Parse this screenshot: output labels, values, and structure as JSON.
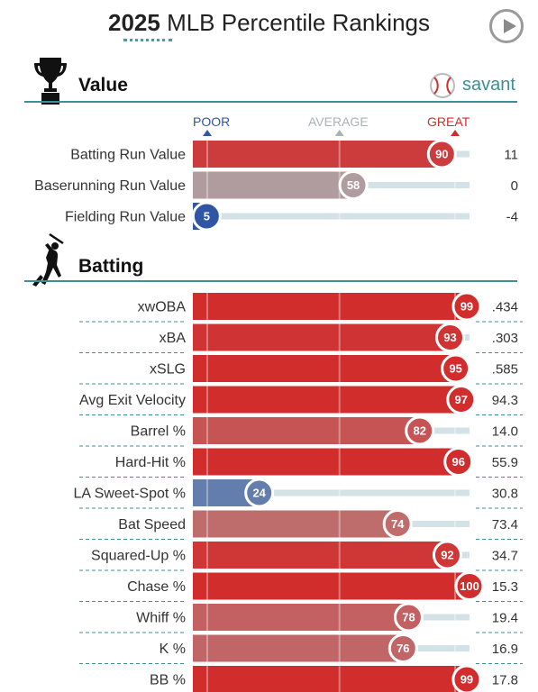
{
  "header": {
    "title_year": "2025",
    "title_rest": " MLB Percentile Rankings"
  },
  "brand": {
    "label": "savant"
  },
  "scale": {
    "poor": "POOR",
    "average": "AVERAGE",
    "great": "GREAT",
    "poor_color": "#2f55a4",
    "average_color": "#a9b3b6",
    "great_color": "#d22d2d"
  },
  "sections": [
    {
      "title": "Value",
      "icon": "trophy-icon"
    },
    {
      "title": "Batting",
      "icon": "batter-icon"
    }
  ],
  "chart_data": {
    "type": "bar",
    "title": "2025 MLB Percentile Rankings",
    "xlim": [
      0,
      100
    ],
    "groups": [
      {
        "name": "Value",
        "metrics": [
          {
            "label": "Batting Run Value",
            "percentile": 90,
            "value": "11"
          },
          {
            "label": "Baserunning Run Value",
            "percentile": 58,
            "value": "0"
          },
          {
            "label": "Fielding Run Value",
            "percentile": 5,
            "value": "-4"
          }
        ]
      },
      {
        "name": "Batting",
        "metrics": [
          {
            "label": "xwOBA",
            "percentile": 99,
            "value": ".434"
          },
          {
            "label": "xBA",
            "percentile": 93,
            "value": ".303"
          },
          {
            "label": "xSLG",
            "percentile": 95,
            "value": ".585"
          },
          {
            "label": "Avg Exit Velocity",
            "percentile": 97,
            "value": "94.3"
          },
          {
            "label": "Barrel %",
            "percentile": 82,
            "value": "14.0"
          },
          {
            "label": "Hard-Hit %",
            "percentile": 96,
            "value": "55.9"
          },
          {
            "label": "LA Sweet-Spot %",
            "percentile": 24,
            "value": "30.8"
          },
          {
            "label": "Bat Speed",
            "percentile": 74,
            "value": "73.4"
          },
          {
            "label": "Squared-Up %",
            "percentile": 92,
            "value": "34.7"
          },
          {
            "label": "Chase %",
            "percentile": 100,
            "value": "15.3"
          },
          {
            "label": "Whiff %",
            "percentile": 78,
            "value": "19.4"
          },
          {
            "label": "K %",
            "percentile": 76,
            "value": "16.9"
          },
          {
            "label": "BB %",
            "percentile": 99,
            "value": "17.8"
          }
        ]
      }
    ]
  }
}
